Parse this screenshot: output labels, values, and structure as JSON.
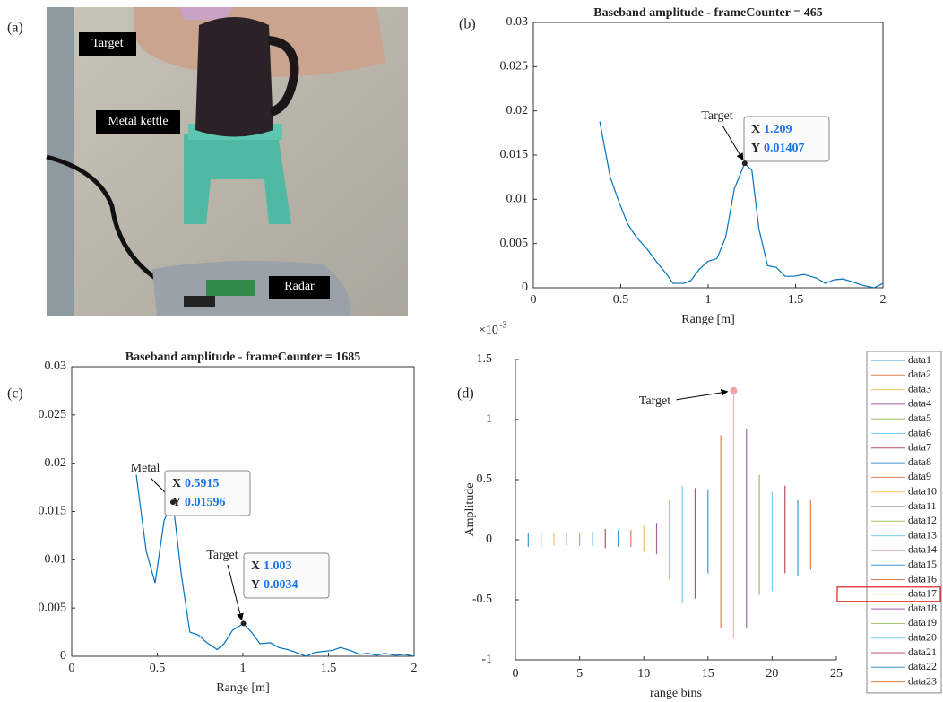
{
  "figure": {
    "photo": {
      "panel_label": "(a)",
      "labels": [
        "Target",
        "Metal kettle",
        "Radar"
      ]
    }
  },
  "chart_data": [
    {
      "type": "line",
      "panel_label": "(b)",
      "title": "Baseband amplitude - frameCounter = 465",
      "xlabel": "Range [m]",
      "color": "#0072bd",
      "x": [
        0.38,
        0.44,
        0.49,
        0.54,
        0.59,
        0.65,
        0.71,
        0.76,
        0.8,
        0.86,
        0.9,
        0.95,
        1.0,
        1.05,
        1.1,
        1.15,
        1.209,
        1.25,
        1.29,
        1.34,
        1.39,
        1.44,
        1.49,
        1.55,
        1.62,
        1.67,
        1.72,
        1.77,
        1.82,
        1.88,
        1.95,
        2.0
      ],
      "values": [
        0.0188,
        0.0125,
        0.0097,
        0.0072,
        0.0057,
        0.0044,
        0.0028,
        0.0016,
        0.0005,
        0.0005,
        0.0008,
        0.0021,
        0.003,
        0.0033,
        0.0057,
        0.0112,
        0.01407,
        0.0133,
        0.0067,
        0.0025,
        0.0023,
        0.0013,
        0.0013,
        0.0015,
        0.0011,
        0.0005,
        0.0009,
        0.001,
        0.0007,
        0.0003,
        0,
        0.0005
      ],
      "xlim": [
        0,
        2
      ],
      "xticks": [
        0,
        0.5,
        1,
        1.5,
        2
      ],
      "ylim": [
        0,
        0.03
      ],
      "yticks": [
        0,
        0.005,
        0.01,
        0.015,
        0.02,
        0.025,
        0.03
      ],
      "datatip_names": [
        "X",
        "Y"
      ],
      "datatips": [
        {
          "label": "Target",
          "x": 1.209,
          "y": 0.01407
        }
      ]
    },
    {
      "type": "line",
      "panel_label": "(c)",
      "title": "Baseband amplitude - frameCounter = 1685",
      "xlabel": "Range [m]",
      "color": "#0072bd",
      "x": [
        0.377,
        0.435,
        0.487,
        0.54,
        0.5915,
        0.64,
        0.69,
        0.74,
        0.79,
        0.85,
        0.89,
        0.94,
        1.003,
        1.05,
        1.1,
        1.16,
        1.21,
        1.26,
        1.31,
        1.37,
        1.42,
        1.47,
        1.52,
        1.57,
        1.63,
        1.68,
        1.73,
        1.78,
        1.83,
        1.89,
        1.94,
        2.0
      ],
      "values": [
        0.0188,
        0.0109,
        0.0076,
        0.0141,
        0.01596,
        0.0085,
        0.0025,
        0.0022,
        0.0014,
        0.0007,
        0.0013,
        0.0027,
        0.0034,
        0.0025,
        0.0013,
        0.0014,
        0.0009,
        0.0007,
        0.0004,
        0,
        0.0004,
        0.0005,
        0.0006,
        0.0009,
        0.0006,
        0.0002,
        0.0003,
        0.0001,
        0.0003,
        0.0001,
        0.0002,
        0
      ],
      "xlim": [
        0,
        2
      ],
      "xticks": [
        0,
        0.5,
        1,
        1.5,
        2
      ],
      "ylim": [
        0,
        0.03
      ],
      "yticks": [
        0,
        0.005,
        0.01,
        0.015,
        0.02,
        0.025,
        0.03
      ],
      "datatip_names": [
        "X",
        "Y"
      ],
      "datatips": [
        {
          "label": "Metal",
          "x": 0.5915,
          "y": 0.01596
        },
        {
          "label": "Target",
          "x": 1.003,
          "y": 0.0034
        }
      ]
    },
    {
      "type": "stem",
      "panel_label": "(d)",
      "xlabel": "range bins",
      "ylabel": "Amplitude",
      "y_multiplier": {
        "base": "×10",
        "exponent": "-3"
      },
      "xlim": [
        0,
        25
      ],
      "xticks": [
        0,
        5,
        10,
        15,
        20,
        25
      ],
      "ylim": [
        -1,
        1.5
      ],
      "yticks": [
        -1,
        -0.5,
        0,
        0.5,
        1,
        1.5
      ],
      "legend": "right",
      "legend_highlight": 16,
      "annotations": [
        {
          "label": "Target",
          "x": 17,
          "y": 1.24,
          "color": "#f4a3a3"
        }
      ],
      "series": [
        {
          "name": "data1",
          "color": "#0072bd",
          "x": 1,
          "values": [
            0.06,
            -0.06
          ]
        },
        {
          "name": "data2",
          "color": "#d95319",
          "x": 2,
          "values": [
            0.06,
            -0.06
          ]
        },
        {
          "name": "data3",
          "color": "#edb120",
          "x": 3,
          "values": [
            0.06,
            -0.05
          ]
        },
        {
          "name": "data4",
          "color": "#7e2f8e",
          "x": 4,
          "values": [
            0.06,
            -0.05
          ]
        },
        {
          "name": "data5",
          "color": "#77ac30",
          "x": 5,
          "values": [
            0.06,
            -0.05
          ]
        },
        {
          "name": "data6",
          "color": "#4dbeee",
          "x": 6,
          "values": [
            0.07,
            -0.05
          ]
        },
        {
          "name": "data7",
          "color": "#a2142f",
          "x": 7,
          "values": [
            0.09,
            -0.07
          ]
        },
        {
          "name": "data8",
          "color": "#0072bd",
          "x": 8,
          "values": [
            0.08,
            -0.06
          ]
        },
        {
          "name": "data9",
          "color": "#d95319",
          "x": 9,
          "values": [
            0.08,
            -0.06
          ]
        },
        {
          "name": "data10",
          "color": "#edb120",
          "x": 10,
          "values": [
            0.12,
            -0.1
          ]
        },
        {
          "name": "data11",
          "color": "#7e2f8e",
          "x": 11,
          "values": [
            0.14,
            -0.12
          ]
        },
        {
          "name": "data12",
          "color": "#77ac30",
          "x": 12,
          "values": [
            0.33,
            -0.33
          ]
        },
        {
          "name": "data13",
          "color": "#4dbeee",
          "x": 13,
          "values": [
            0.45,
            -0.53
          ]
        },
        {
          "name": "data14",
          "color": "#a2142f",
          "x": 14,
          "values": [
            0.43,
            -0.49
          ]
        },
        {
          "name": "data15",
          "color": "#0072bd",
          "x": 15,
          "values": [
            0.42,
            -0.28
          ]
        },
        {
          "name": "data16",
          "color": "#d95319",
          "x": 16,
          "values": [
            0.87,
            -0.73
          ]
        },
        {
          "name": "data17",
          "color": "#edb120",
          "x": 17,
          "values": [
            1.22,
            -0.82
          ]
        },
        {
          "name": "data18",
          "color": "#7e2f8e",
          "x": 18,
          "values": [
            0.92,
            -0.73
          ]
        },
        {
          "name": "data19",
          "color": "#77ac30",
          "x": 19,
          "values": [
            0.54,
            -0.46
          ]
        },
        {
          "name": "data20",
          "color": "#4dbeee",
          "x": 20,
          "values": [
            0.4,
            -0.43
          ]
        },
        {
          "name": "data21",
          "color": "#a2142f",
          "x": 21,
          "values": [
            0.45,
            -0.28
          ]
        },
        {
          "name": "data22",
          "color": "#0072bd",
          "x": 22,
          "values": [
            0.33,
            -0.3
          ]
        },
        {
          "name": "data23",
          "color": "#d95319",
          "x": 23,
          "values": [
            0.33,
            -0.25
          ]
        }
      ]
    }
  ]
}
